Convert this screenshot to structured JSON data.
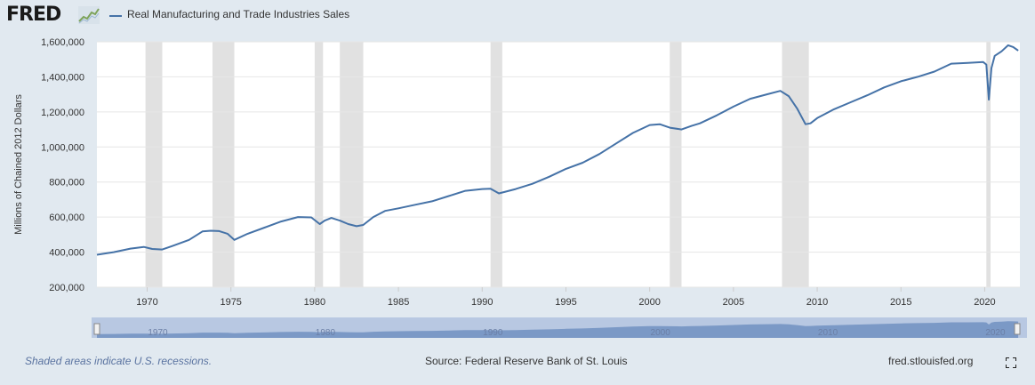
{
  "header": {
    "logo_text": "FRED",
    "logo_icon": "fred-trend-logo-icon"
  },
  "footer": {
    "recession_note": "Shaded areas indicate U.S. recessions.",
    "source": "Source: Federal Reserve Bank of St. Louis",
    "site": "fred.stlouisfed.org",
    "fullscreen_icon": "fullscreen-icon"
  },
  "colors": {
    "line": "#4572a7",
    "recession": "#e1e1e1",
    "navigator_fill": "#6c8dbf",
    "navigator_bg": "#b8c8e2",
    "page_bg": "#e1e9f0",
    "plot_bg": "#ffffff"
  },
  "chart_data": {
    "type": "line",
    "title": "",
    "xlabel": "",
    "ylabel": "Millions of Chained 2012 Dollars",
    "xlim": [
      1967.0,
      2022.1
    ],
    "ylim": [
      200000,
      1600000
    ],
    "grid": true,
    "legend_placement": "top-left",
    "y_ticks": [
      "200,000",
      "400,000",
      "600,000",
      "800,000",
      "1,000,000",
      "1,200,000",
      "1,400,000",
      "1,600,000"
    ],
    "y_tick_values": [
      200000,
      400000,
      600000,
      800000,
      1000000,
      1200000,
      1400000,
      1600000
    ],
    "x_ticks": [
      "1970",
      "1975",
      "1980",
      "1985",
      "1990",
      "1995",
      "2000",
      "2005",
      "2010",
      "2015",
      "2020"
    ],
    "x_tick_values": [
      1970,
      1975,
      1980,
      1985,
      1990,
      1995,
      2000,
      2005,
      2010,
      2015,
      2020
    ],
    "recessions": [
      [
        1969.9,
        1970.9
      ],
      [
        1973.9,
        1975.2
      ],
      [
        1980.0,
        1980.5
      ],
      [
        1981.5,
        1982.9
      ],
      [
        1990.5,
        1991.2
      ],
      [
        2001.2,
        2001.9
      ],
      [
        2007.9,
        2009.5
      ],
      [
        2020.1,
        2020.35
      ]
    ],
    "navigator_labels": [
      "1970",
      "1980",
      "1990",
      "2000",
      "2010",
      "2020"
    ],
    "navigator_label_values": [
      1970,
      1980,
      1990,
      2000,
      2010,
      2020
    ],
    "series": [
      {
        "name": "Real Manufacturing and Trade Industries Sales",
        "x": [
          1967.0,
          1968.0,
          1969.0,
          1969.8,
          1970.3,
          1970.9,
          1971.5,
          1972.5,
          1973.3,
          1973.8,
          1974.3,
          1974.8,
          1975.2,
          1976.0,
          1977.0,
          1978.0,
          1979.0,
          1979.8,
          1980.3,
          1980.6,
          1981.0,
          1981.5,
          1982.0,
          1982.5,
          1982.9,
          1983.5,
          1984.2,
          1985.0,
          1986.0,
          1987.0,
          1988.0,
          1989.0,
          1990.0,
          1990.5,
          1991.0,
          1992.0,
          1993.0,
          1994.0,
          1995.0,
          1996.0,
          1997.0,
          1998.0,
          1999.0,
          2000.0,
          2000.6,
          2001.2,
          2001.9,
          2002.5,
          2003.0,
          2004.0,
          2005.0,
          2006.0,
          2007.0,
          2007.8,
          2008.3,
          2008.8,
          2009.3,
          2009.6,
          2010.0,
          2011.0,
          2012.0,
          2013.0,
          2014.0,
          2015.0,
          2016.0,
          2017.0,
          2018.0,
          2019.0,
          2019.9,
          2020.1,
          2020.25,
          2020.4,
          2020.6,
          2021.0,
          2021.4,
          2021.7,
          2022.0
        ],
        "values": [
          385000,
          400000,
          420000,
          430000,
          418000,
          415000,
          435000,
          470000,
          518000,
          522000,
          520000,
          505000,
          470000,
          505000,
          540000,
          575000,
          600000,
          598000,
          560000,
          580000,
          595000,
          580000,
          560000,
          548000,
          555000,
          600000,
          635000,
          650000,
          670000,
          690000,
          720000,
          750000,
          760000,
          762000,
          735000,
          760000,
          790000,
          830000,
          875000,
          910000,
          960000,
          1020000,
          1080000,
          1125000,
          1130000,
          1110000,
          1100000,
          1120000,
          1135000,
          1180000,
          1230000,
          1275000,
          1300000,
          1320000,
          1290000,
          1220000,
          1130000,
          1135000,
          1165000,
          1215000,
          1255000,
          1295000,
          1340000,
          1375000,
          1400000,
          1430000,
          1475000,
          1480000,
          1485000,
          1470000,
          1270000,
          1450000,
          1520000,
          1545000,
          1580000,
          1570000,
          1550000
        ]
      }
    ]
  }
}
